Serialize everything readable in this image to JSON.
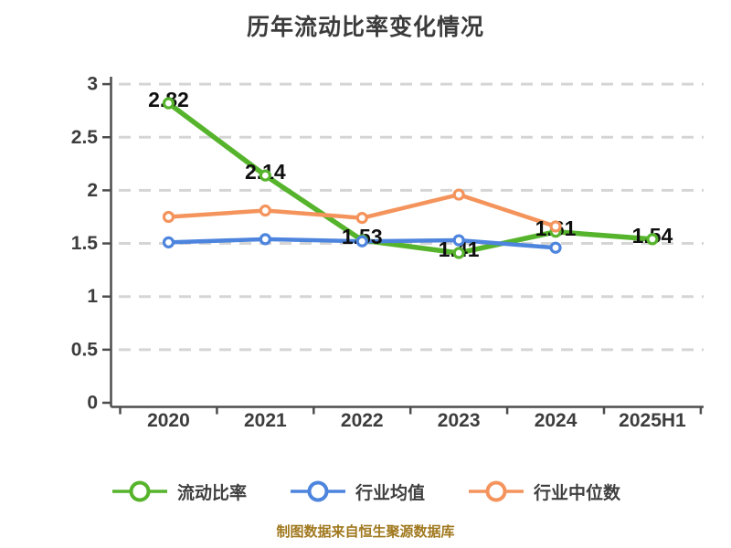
{
  "title": "历年流动比率变化情况",
  "caption": "制图数据来自恒生聚源数据库",
  "colors": {
    "title_text": "#3b3b3b",
    "axis_line": "#4d4d4d",
    "axis_label": "#3d3d3d",
    "gridline": "#d5d5d5",
    "point_label": "#0f0f0f",
    "marker_fill": "#ffffff",
    "caption_text": "#a0781e",
    "background": "#ffffff"
  },
  "chart_data": {
    "type": "line",
    "title": "历年流动比率变化情况",
    "xlabel": "",
    "ylabel": "",
    "categories": [
      "2020",
      "2021",
      "2022",
      "2023",
      "2024",
      "2025H1"
    ],
    "series": [
      {
        "name": "流动比率",
        "color": "#56b42c",
        "values": [
          2.82,
          2.14,
          1.53,
          1.41,
          1.61,
          1.54
        ],
        "show_labels": true
      },
      {
        "name": "行业均值",
        "color": "#4d84dd",
        "values": [
          1.51,
          1.54,
          1.52,
          1.53,
          1.46,
          null
        ],
        "show_labels": false
      },
      {
        "name": "行业中位数",
        "color": "#f4945c",
        "values": [
          1.75,
          1.81,
          1.74,
          1.96,
          1.66,
          null
        ],
        "show_labels": false
      }
    ],
    "ylim": [
      0,
      3
    ],
    "yticks": [
      "0",
      "0.5",
      "1",
      "1.5",
      "2",
      "2.5",
      "3"
    ],
    "grid": "horizontal-dashed",
    "legend_position": "bottom",
    "marker_style": "white-filled-circle"
  }
}
